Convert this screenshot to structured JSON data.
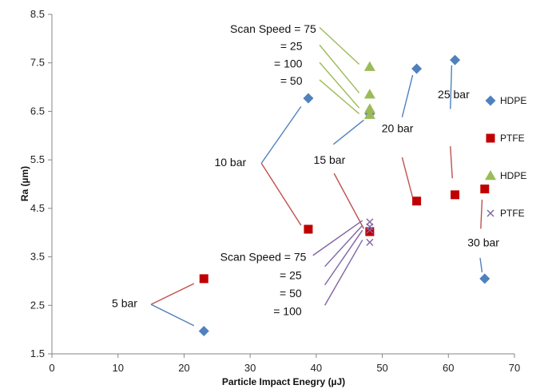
{
  "chart_data": {
    "type": "scatter",
    "xlabel": "Particle Impact Enegry (µJ)",
    "ylabel": "Ra (µm)",
    "xlim": [
      0,
      70
    ],
    "ylim": [
      1.5,
      8.5
    ],
    "x_ticks": [
      "0",
      "10",
      "20",
      "30",
      "40",
      "50",
      "60",
      "70"
    ],
    "y_ticks": [
      "1.5",
      "2.5",
      "3.5",
      "4.5",
      "5.5",
      "6.5",
      "7.5",
      "8.5"
    ],
    "grid": false,
    "legend_position": "right",
    "series": [
      {
        "name": "HDPE",
        "marker": "diamond",
        "color": "#4F81BD",
        "points": [
          {
            "x": 23,
            "y": 1.97
          },
          {
            "x": 38.8,
            "y": 6.77
          },
          {
            "x": 48.1,
            "y": 6.45
          },
          {
            "x": 55.2,
            "y": 7.38
          },
          {
            "x": 61,
            "y": 7.56
          },
          {
            "x": 65.5,
            "y": 3.05
          }
        ]
      },
      {
        "name": "PTFE",
        "marker": "square",
        "color": "#C00000",
        "points": [
          {
            "x": 23,
            "y": 3.05
          },
          {
            "x": 38.8,
            "y": 4.07
          },
          {
            "x": 48.1,
            "y": 4.02
          },
          {
            "x": 55.2,
            "y": 4.65
          },
          {
            "x": 61,
            "y": 4.78
          },
          {
            "x": 65.5,
            "y": 4.9
          }
        ]
      },
      {
        "name": "HDPE",
        "marker": "triangle",
        "color": "#9BBB59",
        "points": [
          {
            "x": 48.1,
            "y": 7.42
          },
          {
            "x": 48.1,
            "y": 6.85
          },
          {
            "x": 48.1,
            "y": 6.55
          },
          {
            "x": 48.1,
            "y": 6.43
          }
        ]
      },
      {
        "name": "PTFE",
        "marker": "x",
        "color": "#8064A2",
        "points": [
          {
            "x": 48.1,
            "y": 4.22
          },
          {
            "x": 48.1,
            "y": 4.12
          },
          {
            "x": 48.1,
            "y": 4.05
          },
          {
            "x": 48.1,
            "y": 3.8
          }
        ]
      }
    ],
    "annotations": [
      {
        "text": "5 bar",
        "label": {
          "x": 11,
          "y": 2.55
        },
        "lines": [
          {
            "color": "#C0504D",
            "from": [
              15,
              2.52
            ],
            "to": [
              21.5,
              2.95
            ]
          },
          {
            "color": "#4F81BD",
            "from": [
              15,
              2.52
            ],
            "to": [
              21.5,
              2.08
            ]
          }
        ]
      },
      {
        "text": "10 bar",
        "label": {
          "x": 27,
          "y": 5.45
        },
        "lines": [
          {
            "color": "#4F81BD",
            "from": [
              31.7,
              5.43
            ],
            "to": [
              37.7,
              6.6
            ]
          },
          {
            "color": "#C0504D",
            "from": [
              31.7,
              5.43
            ],
            "to": [
              37.7,
              4.15
            ]
          }
        ]
      },
      {
        "text": "15 bar",
        "label": {
          "x": 42,
          "y": 5.5
        },
        "lines": [
          {
            "color": "#4F81BD",
            "from": [
              42.6,
              5.82
            ],
            "to": [
              47.2,
              6.32
            ]
          },
          {
            "color": "#C0504D",
            "from": [
              42.7,
              5.22
            ],
            "to": [
              47.2,
              4.08
            ]
          }
        ]
      },
      {
        "text": "20 bar",
        "label": {
          "x": 52.3,
          "y": 6.15
        },
        "lines": [
          {
            "color": "#4F81BD",
            "from": [
              53,
              6.38
            ],
            "to": [
              54.6,
              7.25
            ]
          },
          {
            "color": "#C0504D",
            "from": [
              53,
              5.55
            ],
            "to": [
              54.6,
              4.72
            ]
          }
        ]
      },
      {
        "text": "25 bar",
        "label": {
          "x": 60.8,
          "y": 6.85
        },
        "lines": [
          {
            "color": "#4F81BD",
            "from": [
              60.5,
              7.45
            ],
            "to": [
              60.3,
              6.55
            ]
          },
          {
            "color": "#C0504D",
            "from": [
              60.3,
              5.78
            ],
            "to": [
              60.6,
              5.12
            ]
          }
        ]
      },
      {
        "text": "30 bar",
        "label": {
          "x": 65.3,
          "y": 3.8
        },
        "lines": [
          {
            "color": "#C0504D",
            "from": [
              65.1,
              4.68
            ],
            "to": [
              64.9,
              4.08
            ]
          },
          {
            "color": "#4F81BD",
            "from": [
              64.8,
              3.48
            ],
            "to": [
              65.1,
              3.18
            ]
          }
        ]
      }
    ],
    "speed_groups": [
      {
        "color": "#9BBB59",
        "labels": [
          {
            "text": "Scan Speed = 75",
            "x": 40,
            "y": 8.2
          },
          {
            "text": "= 25",
            "x": 37.9,
            "y": 7.85
          },
          {
            "text": "= 100",
            "x": 37.9,
            "y": 7.49
          },
          {
            "text": "= 50",
            "x": 37.9,
            "y": 7.13
          }
        ],
        "lines": [
          {
            "from": [
              40.5,
              8.23
            ],
            "to": [
              46.5,
              7.47
            ]
          },
          {
            "from": [
              40.5,
              7.87
            ],
            "to": [
              46.5,
              6.88
            ]
          },
          {
            "from": [
              40.5,
              7.51
            ],
            "to": [
              46.5,
              6.57
            ]
          },
          {
            "from": [
              40.5,
              7.15
            ],
            "to": [
              46.5,
              6.45
            ]
          }
        ]
      },
      {
        "color": "#8064A2",
        "labels": [
          {
            "text": "Scan Speed = 75",
            "x": 38.5,
            "y": 3.5
          },
          {
            "text": "= 25",
            "x": 37.8,
            "y": 3.12
          },
          {
            "text": "= 50",
            "x": 37.8,
            "y": 2.75
          },
          {
            "text": "= 100",
            "x": 37.8,
            "y": 2.38
          }
        ],
        "lines": [
          {
            "from": [
              39.5,
              3.53
            ],
            "to": [
              47,
              4.25
            ]
          },
          {
            "from": [
              41.3,
              3.3
            ],
            "to": [
              47,
              4.15
            ]
          },
          {
            "from": [
              41.3,
              2.92
            ],
            "to": [
              47,
              4.05
            ]
          },
          {
            "from": [
              41.3,
              2.5
            ],
            "to": [
              47,
              3.85
            ]
          }
        ]
      }
    ]
  }
}
